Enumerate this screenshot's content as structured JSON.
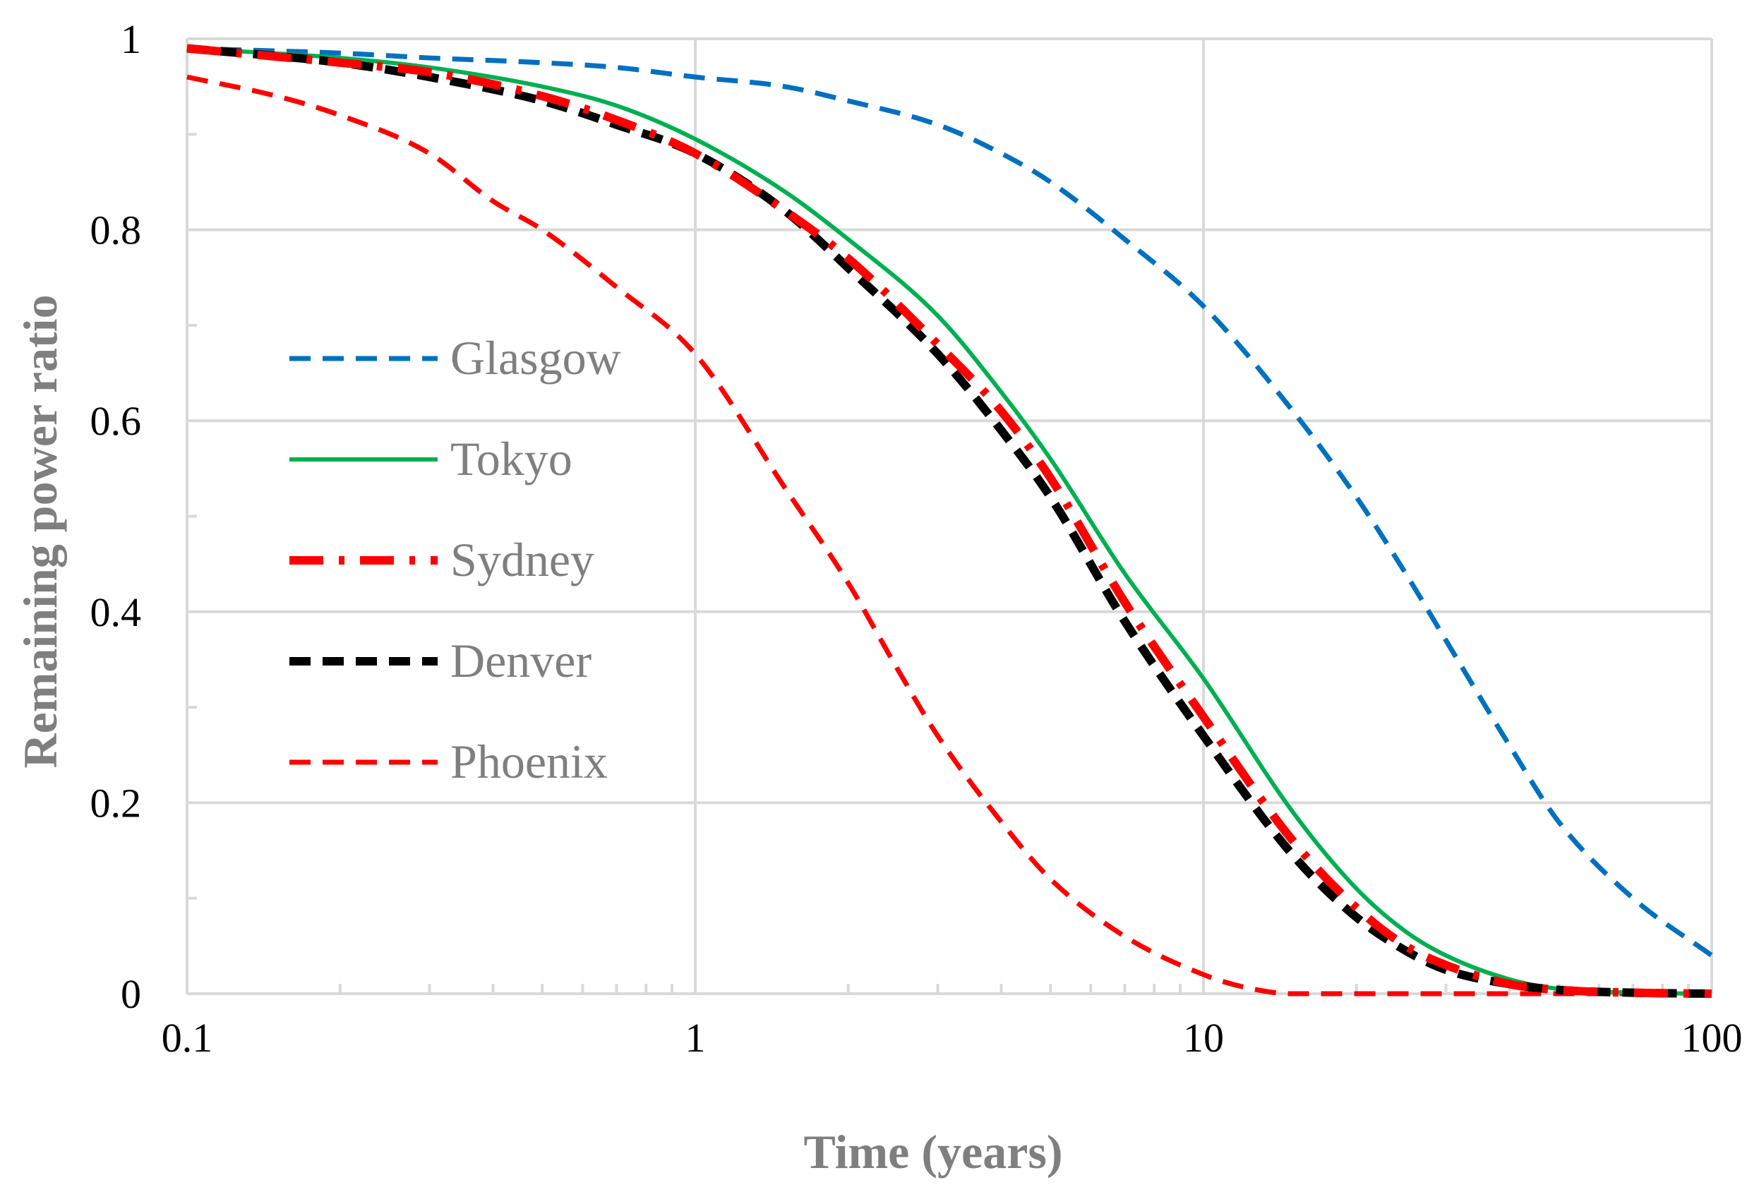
{
  "chart_data": {
    "type": "line",
    "title": "",
    "xlabel": "Time (years)",
    "ylabel": "Remaining power ratio",
    "xscale": "log",
    "xlim": [
      0.1,
      100
    ],
    "ylim": [
      0,
      1
    ],
    "grid": true,
    "x_ticks": [
      {
        "value": 0.1,
        "label": "0.1"
      },
      {
        "value": 1,
        "label": "1"
      },
      {
        "value": 10,
        "label": "10"
      },
      {
        "value": 100,
        "label": "100"
      }
    ],
    "y_ticks": [
      {
        "value": 0,
        "label": "0"
      },
      {
        "value": 0.2,
        "label": "0.2"
      },
      {
        "value": 0.4,
        "label": "0.4"
      },
      {
        "value": 0.6,
        "label": "0.6"
      },
      {
        "value": 0.8,
        "label": "0.8"
      },
      {
        "value": 1,
        "label": "1"
      }
    ],
    "legend_position": "left-middle",
    "series": [
      {
        "name": "Glasgow",
        "color": "#0070c0",
        "style": "dashed",
        "points": [
          [
            0.1,
            0.99
          ],
          [
            0.2,
            0.985
          ],
          [
            0.3,
            0.98
          ],
          [
            0.5,
            0.975
          ],
          [
            0.7,
            0.97
          ],
          [
            1,
            0.96
          ],
          [
            1.5,
            0.95
          ],
          [
            2,
            0.935
          ],
          [
            3,
            0.91
          ],
          [
            4,
            0.88
          ],
          [
            5,
            0.85
          ],
          [
            7,
            0.79
          ],
          [
            10,
            0.72
          ],
          [
            15,
            0.61
          ],
          [
            20,
            0.52
          ],
          [
            25,
            0.44
          ],
          [
            30,
            0.37
          ],
          [
            40,
            0.26
          ],
          [
            50,
            0.18
          ],
          [
            70,
            0.1
          ],
          [
            100,
            0.04
          ]
        ]
      },
      {
        "name": "Tokyo",
        "color": "#00b050",
        "style": "solid",
        "points": [
          [
            0.1,
            0.99
          ],
          [
            0.2,
            0.98
          ],
          [
            0.3,
            0.97
          ],
          [
            0.5,
            0.95
          ],
          [
            0.7,
            0.93
          ],
          [
            1,
            0.895
          ],
          [
            1.5,
            0.84
          ],
          [
            2,
            0.79
          ],
          [
            3,
            0.71
          ],
          [
            4,
            0.63
          ],
          [
            5,
            0.56
          ],
          [
            7,
            0.44
          ],
          [
            10,
            0.33
          ],
          [
            15,
            0.19
          ],
          [
            20,
            0.11
          ],
          [
            25,
            0.065
          ],
          [
            30,
            0.04
          ],
          [
            40,
            0.015
          ],
          [
            50,
            0.005
          ],
          [
            70,
            0.001
          ],
          [
            100,
            0
          ]
        ]
      },
      {
        "name": "Sydney",
        "color": "#ff0000",
        "style": "dash-dot",
        "points": [
          [
            0.1,
            0.99
          ],
          [
            0.2,
            0.975
          ],
          [
            0.3,
            0.965
          ],
          [
            0.5,
            0.94
          ],
          [
            0.7,
            0.915
          ],
          [
            1,
            0.88
          ],
          [
            1.5,
            0.82
          ],
          [
            2,
            0.77
          ],
          [
            3,
            0.68
          ],
          [
            4,
            0.61
          ],
          [
            5,
            0.54
          ],
          [
            7,
            0.41
          ],
          [
            10,
            0.29
          ],
          [
            15,
            0.16
          ],
          [
            20,
            0.09
          ],
          [
            25,
            0.05
          ],
          [
            30,
            0.03
          ],
          [
            40,
            0.01
          ],
          [
            50,
            0.004
          ],
          [
            70,
            0.001
          ],
          [
            100,
            0
          ]
        ]
      },
      {
        "name": "Denver",
        "color": "#000000",
        "style": "dashed",
        "points": [
          [
            0.1,
            0.99
          ],
          [
            0.2,
            0.975
          ],
          [
            0.3,
            0.96
          ],
          [
            0.5,
            0.935
          ],
          [
            0.7,
            0.91
          ],
          [
            1,
            0.88
          ],
          [
            1.5,
            0.82
          ],
          [
            2,
            0.76
          ],
          [
            3,
            0.67
          ],
          [
            4,
            0.59
          ],
          [
            5,
            0.52
          ],
          [
            7,
            0.39
          ],
          [
            10,
            0.27
          ],
          [
            15,
            0.145
          ],
          [
            20,
            0.08
          ],
          [
            25,
            0.045
          ],
          [
            30,
            0.025
          ],
          [
            40,
            0.01
          ],
          [
            50,
            0.004
          ],
          [
            70,
            0.001
          ],
          [
            100,
            0
          ]
        ]
      },
      {
        "name": "Phoenix",
        "color": "#ff0000",
        "style": "dashed",
        "points": [
          [
            0.1,
            0.96
          ],
          [
            0.15,
            0.94
          ],
          [
            0.2,
            0.92
          ],
          [
            0.3,
            0.88
          ],
          [
            0.4,
            0.83
          ],
          [
            0.5,
            0.8
          ],
          [
            0.7,
            0.74
          ],
          [
            1,
            0.67
          ],
          [
            1.5,
            0.53
          ],
          [
            2,
            0.43
          ],
          [
            2.5,
            0.34
          ],
          [
            3,
            0.27
          ],
          [
            4,
            0.18
          ],
          [
            5,
            0.12
          ],
          [
            7,
            0.06
          ],
          [
            10,
            0.02
          ],
          [
            12,
            0.007
          ],
          [
            15,
            0
          ],
          [
            20,
            0
          ],
          [
            50,
            0
          ],
          [
            100,
            0
          ]
        ]
      }
    ]
  }
}
